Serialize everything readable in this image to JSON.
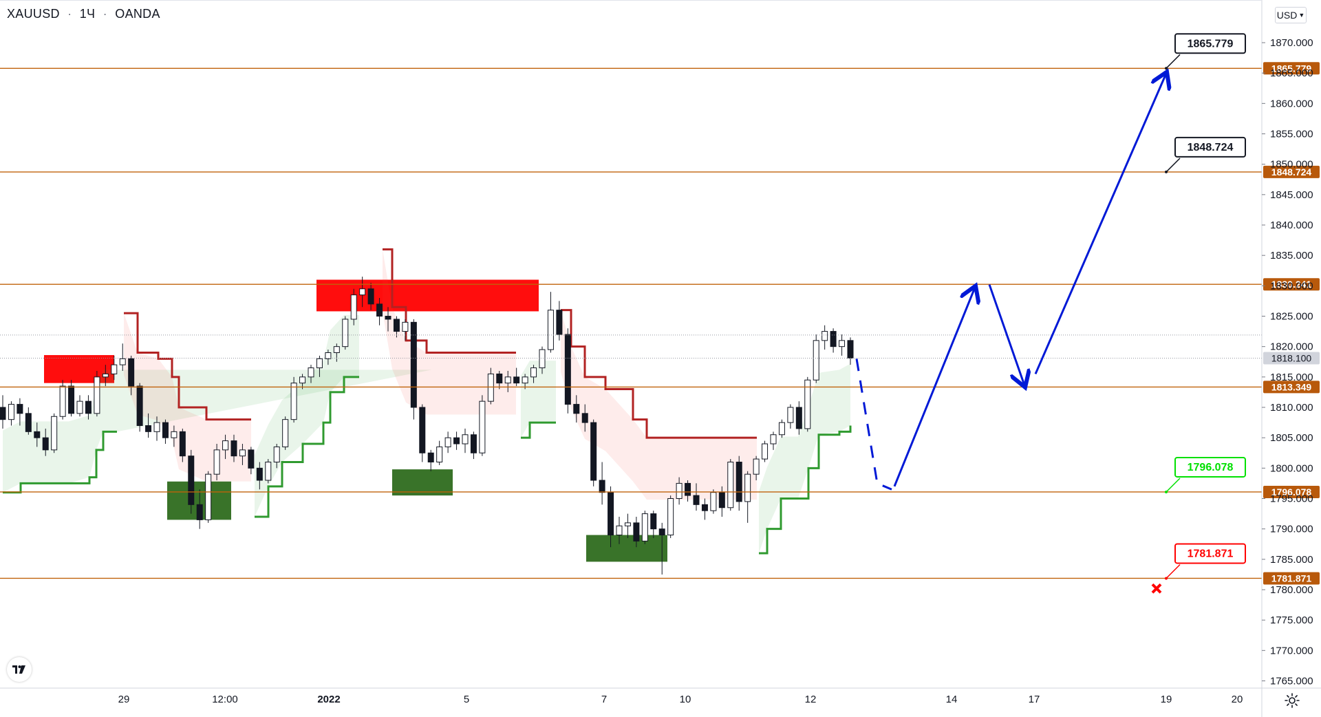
{
  "header": {
    "symbol": "XAUUSD",
    "interval": "1Ч",
    "broker": "OANDA",
    "separator": "·"
  },
  "currency_selector": {
    "label": "USD"
  },
  "icons": [
    "tradingview-logo-icon",
    "settings-gear-icon",
    "chevron-down-icon",
    "cross-marker-icon"
  ],
  "colors": {
    "level_line": "#c0620a",
    "level_badge": "#b8590b",
    "supply_zone": "#ff0000",
    "demand_zone": "#2e6b1e",
    "trend_up": "#2f9a2f",
    "trend_down": "#b22222",
    "projection": "#0019d6",
    "target_green": "#00e000",
    "target_red": "#ff0000",
    "candle": "#131722"
  },
  "chart_data": {
    "type": "candlestick",
    "symbol": "XAUUSD",
    "timeframe": "1Ч",
    "source": "OANDA",
    "ylim": [
      1763,
      1874
    ],
    "y_ticks": [
      1765,
      1770,
      1775,
      1780,
      1785,
      1790,
      1795,
      1800,
      1805,
      1810,
      1815,
      1820,
      1825,
      1830,
      1835,
      1840,
      1845,
      1850,
      1855,
      1860,
      1865,
      1870
    ],
    "x_tick_labels": [
      "29",
      "12:00",
      "2022",
      "5",
      "7",
      "10",
      "12",
      "14",
      "17",
      "19",
      "20"
    ],
    "current_price": "1818.100",
    "horizontal_levels": [
      1865.779,
      1848.724,
      1830.241,
      1813.349,
      1796.078,
      1781.871
    ],
    "level_badges": [
      "1865.779",
      "1848.724",
      "1830.241",
      "1813.349",
      "1796.078",
      "1781.871"
    ],
    "callouts": [
      {
        "label": "1865.779",
        "color": "black",
        "value": 1865.779
      },
      {
        "label": "1848.724",
        "color": "black",
        "value": 1848.724
      },
      {
        "label": "1796.078",
        "color": "green",
        "value": 1796.078
      },
      {
        "label": "1781.871",
        "color": "red",
        "value": 1781.871
      }
    ],
    "supply_zones": [
      {
        "from": "27 Dec",
        "to": "28 Dec",
        "low": 1814.0,
        "high": 1818.6
      },
      {
        "from": "31 Dec",
        "to": "6 Jan",
        "low": 1825.8,
        "high": 1831.0
      }
    ],
    "demand_zones": [
      {
        "from": "29 Dec",
        "to": "30 Dec",
        "low": 1791.5,
        "high": 1797.8
      },
      {
        "from": "3 Jan",
        "to": "4 Jan",
        "low": 1795.5,
        "high": 1799.8
      },
      {
        "from": "7 Jan",
        "to": "9 Jan",
        "low": 1784.6,
        "high": 1789.0
      }
    ],
    "trend_segments": [
      {
        "direction": "up",
        "points": [
          [
            0,
            1796.0
          ],
          [
            1,
            1797.5
          ],
          [
            2,
            1797.5
          ],
          [
            3,
            1798.5
          ],
          [
            4,
            1803.0
          ],
          [
            5,
            1806.0
          ],
          [
            6,
            1806.0
          ],
          [
            7,
            1806.0
          ]
        ]
      },
      {
        "direction": "down",
        "points": [
          [
            8,
            1825.5
          ],
          [
            9,
            1819.0
          ],
          [
            10,
            1818.0
          ],
          [
            11,
            1815.0
          ],
          [
            12,
            1810.0
          ],
          [
            13,
            1808.0
          ],
          [
            14,
            1808.0
          ],
          [
            15,
            1808.0
          ]
        ]
      },
      {
        "direction": "up",
        "points": [
          [
            16,
            1792.0
          ],
          [
            17,
            1797.0
          ],
          [
            18,
            1801.0
          ],
          [
            19,
            1804.0
          ],
          [
            20,
            1807.5
          ],
          [
            21,
            1812.5
          ],
          [
            22,
            1815.0
          ],
          [
            23,
            1815.0
          ]
        ]
      },
      {
        "direction": "down",
        "points": [
          [
            24,
            1836.0
          ],
          [
            25,
            1826.5
          ],
          [
            26,
            1821.0
          ],
          [
            27,
            1819.0
          ],
          [
            28,
            1819.0
          ],
          [
            29,
            1819.0
          ]
        ]
      },
      {
        "direction": "up",
        "points": [
          [
            30,
            1805.0
          ],
          [
            31,
            1807.5
          ],
          [
            32,
            1807.5
          ]
        ]
      },
      {
        "direction": "down",
        "points": [
          [
            33,
            1826.0
          ],
          [
            34,
            1820.0
          ],
          [
            35,
            1815.0
          ],
          [
            36,
            1813.0
          ],
          [
            37,
            1808.0
          ],
          [
            38,
            1805.0
          ],
          [
            39,
            1805.0
          ]
        ]
      },
      {
        "direction": "up",
        "points": [
          [
            40,
            1786.0
          ],
          [
            41,
            1790.0
          ],
          [
            42,
            1795.0
          ],
          [
            43,
            1795.0
          ],
          [
            44,
            1800.0
          ],
          [
            45,
            1805.5
          ],
          [
            46,
            1806.0
          ],
          [
            47,
            1807.0
          ]
        ]
      }
    ],
    "projection_path": [
      {
        "style": "dashed",
        "points": [
          [
            1818.0
          ],
          [
            1797.5
          ],
          [
            1796.5
          ]
        ]
      },
      {
        "style": "solid",
        "points": [
          [
            1797.0
          ],
          [
            1830.0
          ],
          [
            1830.5
          ],
          [
            1813.3
          ],
          [
            1815.0
          ],
          [
            1864.5
          ]
        ]
      }
    ],
    "candles_ohlc": [
      [
        1810.0,
        1812.0,
        1806.5,
        1808.0
      ],
      [
        1808.0,
        1811.0,
        1807.0,
        1810.5
      ],
      [
        1810.5,
        1811.5,
        1807.0,
        1809.0
      ],
      [
        1809.0,
        1810.0,
        1805.5,
        1806.0
      ],
      [
        1806.0,
        1807.5,
        1803.5,
        1805.0
      ],
      [
        1805.0,
        1806.5,
        1802.0,
        1803.0
      ],
      [
        1803.0,
        1809.0,
        1802.5,
        1808.5
      ],
      [
        1808.5,
        1814.5,
        1808.0,
        1813.5
      ],
      [
        1813.5,
        1814.5,
        1808.5,
        1809.0
      ],
      [
        1809.0,
        1812.0,
        1808.5,
        1811.0
      ],
      [
        1811.0,
        1812.0,
        1808.0,
        1809.0
      ],
      [
        1809.0,
        1816.0,
        1808.5,
        1815.0
      ],
      [
        1815.0,
        1817.0,
        1813.5,
        1815.5
      ],
      [
        1815.5,
        1818.5,
        1814.5,
        1817.0
      ],
      [
        1817.0,
        1820.5,
        1816.0,
        1818.0
      ],
      [
        1818.0,
        1818.5,
        1812.0,
        1813.5
      ],
      [
        1813.5,
        1814.0,
        1806.0,
        1807.0
      ],
      [
        1807.0,
        1809.0,
        1805.0,
        1806.0
      ],
      [
        1806.0,
        1808.5,
        1804.5,
        1807.5
      ],
      [
        1807.5,
        1808.0,
        1804.0,
        1805.0
      ],
      [
        1805.0,
        1807.0,
        1803.5,
        1806.0
      ],
      [
        1806.0,
        1806.5,
        1801.0,
        1802.0
      ],
      [
        1802.0,
        1803.0,
        1792.5,
        1794.0
      ],
      [
        1794.0,
        1796.5,
        1790.0,
        1791.5
      ],
      [
        1791.5,
        1799.5,
        1791.0,
        1799.0
      ],
      [
        1799.0,
        1804.0,
        1798.0,
        1803.0
      ],
      [
        1803.0,
        1805.5,
        1801.5,
        1804.5
      ],
      [
        1804.5,
        1805.5,
        1801.0,
        1802.0
      ],
      [
        1802.0,
        1804.0,
        1800.5,
        1803.0
      ],
      [
        1803.0,
        1803.5,
        1799.0,
        1800.0
      ],
      [
        1800.0,
        1801.0,
        1796.5,
        1798.0
      ],
      [
        1798.0,
        1801.5,
        1797.5,
        1801.0
      ],
      [
        1801.0,
        1804.0,
        1800.0,
        1803.5
      ],
      [
        1803.5,
        1808.5,
        1803.0,
        1808.0
      ],
      [
        1808.0,
        1815.0,
        1807.5,
        1814.0
      ],
      [
        1814.0,
        1815.5,
        1813.0,
        1815.0
      ],
      [
        1815.0,
        1817.0,
        1814.0,
        1816.5
      ],
      [
        1816.5,
        1818.5,
        1815.0,
        1818.0
      ],
      [
        1818.0,
        1819.5,
        1817.0,
        1819.0
      ],
      [
        1819.0,
        1820.5,
        1817.5,
        1820.0
      ],
      [
        1820.0,
        1825.0,
        1819.5,
        1824.5
      ],
      [
        1824.5,
        1829.5,
        1823.5,
        1828.5
      ],
      [
        1828.5,
        1831.5,
        1826.5,
        1829.5
      ],
      [
        1829.5,
        1830.5,
        1826.0,
        1827.0
      ],
      [
        1827.0,
        1828.0,
        1823.5,
        1825.0
      ],
      [
        1825.0,
        1826.5,
        1822.5,
        1824.5
      ],
      [
        1824.5,
        1825.0,
        1821.5,
        1822.5
      ],
      [
        1822.5,
        1824.5,
        1821.0,
        1824.0
      ],
      [
        1824.0,
        1824.5,
        1808.0,
        1810.0
      ],
      [
        1810.0,
        1810.5,
        1801.0,
        1802.5
      ],
      [
        1802.5,
        1803.0,
        1799.5,
        1801.0
      ],
      [
        1801.0,
        1804.5,
        1800.5,
        1803.5
      ],
      [
        1803.5,
        1806.0,
        1802.5,
        1805.0
      ],
      [
        1805.0,
        1806.0,
        1803.0,
        1804.0
      ],
      [
        1804.0,
        1806.5,
        1802.5,
        1805.5
      ],
      [
        1805.5,
        1806.0,
        1801.5,
        1802.5
      ],
      [
        1802.5,
        1812.0,
        1802.0,
        1811.0
      ],
      [
        1811.0,
        1816.5,
        1810.5,
        1815.5
      ],
      [
        1815.5,
        1816.0,
        1813.0,
        1814.0
      ],
      [
        1814.0,
        1816.0,
        1812.5,
        1815.0
      ],
      [
        1815.0,
        1816.5,
        1813.5,
        1814.0
      ],
      [
        1814.0,
        1815.5,
        1813.0,
        1815.0
      ],
      [
        1815.0,
        1817.0,
        1814.0,
        1816.5
      ],
      [
        1816.5,
        1820.0,
        1815.5,
        1819.5
      ],
      [
        1819.5,
        1829.0,
        1819.0,
        1826.0
      ],
      [
        1826.0,
        1827.5,
        1821.0,
        1822.0
      ],
      [
        1822.0,
        1823.0,
        1809.0,
        1810.5
      ],
      [
        1810.5,
        1812.0,
        1807.5,
        1809.0
      ],
      [
        1809.0,
        1810.5,
        1806.0,
        1807.5
      ],
      [
        1807.5,
        1808.0,
        1797.0,
        1798.0
      ],
      [
        1798.0,
        1801.0,
        1794.0,
        1796.0
      ],
      [
        1796.0,
        1797.0,
        1787.0,
        1789.0
      ],
      [
        1789.0,
        1792.0,
        1787.5,
        1790.5
      ],
      [
        1790.5,
        1792.5,
        1788.5,
        1791.0
      ],
      [
        1791.0,
        1792.0,
        1787.0,
        1788.0
      ],
      [
        1788.0,
        1793.0,
        1787.5,
        1792.5
      ],
      [
        1792.5,
        1793.0,
        1788.5,
        1790.0
      ],
      [
        1790.0,
        1791.0,
        1782.5,
        1789.0
      ],
      [
        1789.0,
        1795.5,
        1788.5,
        1795.0
      ],
      [
        1795.0,
        1798.5,
        1794.0,
        1797.5
      ],
      [
        1797.5,
        1798.0,
        1794.5,
        1795.5
      ],
      [
        1795.5,
        1797.5,
        1793.0,
        1794.0
      ],
      [
        1794.0,
        1795.0,
        1791.5,
        1793.0
      ],
      [
        1793.0,
        1796.5,
        1792.5,
        1796.0
      ],
      [
        1796.0,
        1797.0,
        1792.0,
        1793.5
      ],
      [
        1793.5,
        1801.5,
        1793.0,
        1801.0
      ],
      [
        1801.0,
        1802.0,
        1793.0,
        1794.5
      ],
      [
        1794.5,
        1799.5,
        1791.0,
        1799.0
      ],
      [
        1799.0,
        1802.0,
        1798.0,
        1801.5
      ],
      [
        1801.5,
        1804.5,
        1801.0,
        1804.0
      ],
      [
        1804.0,
        1806.0,
        1803.0,
        1805.5
      ],
      [
        1805.5,
        1808.0,
        1805.0,
        1807.5
      ],
      [
        1807.5,
        1810.5,
        1806.5,
        1810.0
      ],
      [
        1810.0,
        1811.0,
        1805.5,
        1806.5
      ],
      [
        1806.5,
        1815.0,
        1806.0,
        1814.5
      ],
      [
        1814.5,
        1822.0,
        1814.0,
        1821.0
      ],
      [
        1821.0,
        1823.5,
        1819.5,
        1822.5
      ],
      [
        1822.5,
        1823.0,
        1819.0,
        1820.0
      ],
      [
        1820.0,
        1822.0,
        1818.5,
        1821.0
      ],
      [
        1821.0,
        1821.5,
        1817.0,
        1818.1
      ]
    ]
  }
}
